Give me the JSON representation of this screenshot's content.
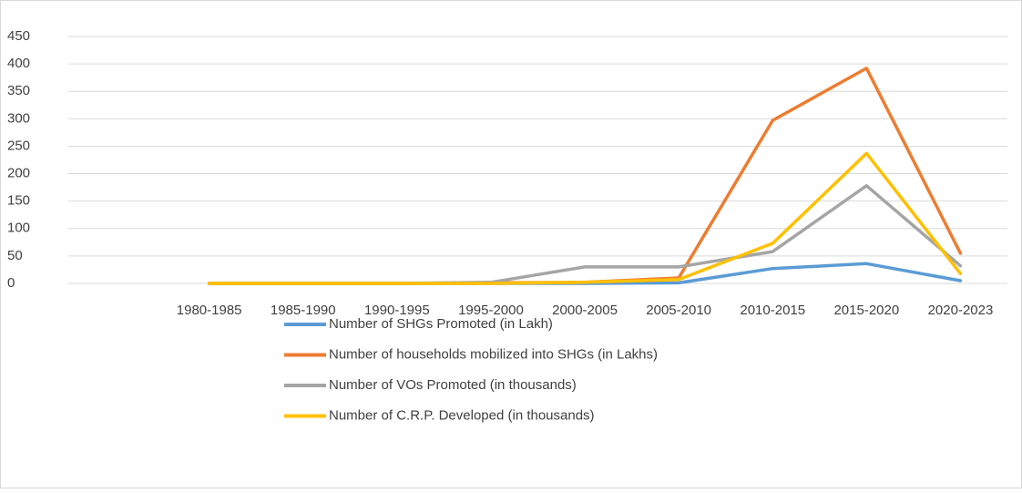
{
  "chart_data": {
    "type": "line",
    "categories": [
      null,
      "1980-1985",
      "1985-1990",
      "1990-1995",
      "1995-2000",
      "2000-2005",
      "2005-2010",
      "2010-2015",
      "2015-2020",
      "2020-2023"
    ],
    "series": [
      {
        "name": "Number of SHGs Promoted (in Lakh)",
        "color": "#5b9bd5",
        "values": [
          null,
          0,
          0,
          0,
          0,
          0,
          1,
          27,
          36,
          5
        ]
      },
      {
        "name": "Number of households mobilized into SHGs (in Lakhs)",
        "color": "#ed7d31",
        "values": [
          null,
          0,
          0,
          0,
          1,
          2,
          10,
          297,
          392,
          55
        ]
      },
      {
        "name": "Number of VOs Promoted (in thousands)",
        "color": "#a5a5a5",
        "values": [
          null,
          0,
          0,
          0,
          2,
          30,
          30,
          58,
          178,
          32
        ]
      },
      {
        "name": "Number of C.R.P. Developed (in thousands)",
        "color": "#ffc000",
        "values": [
          null,
          0,
          0,
          0,
          0,
          2,
          7,
          73,
          237,
          18
        ]
      }
    ],
    "ylim": [
      0,
      450
    ],
    "yticks": [
      0,
      50,
      100,
      150,
      200,
      250,
      300,
      350,
      400,
      450
    ],
    "grid": true
  }
}
